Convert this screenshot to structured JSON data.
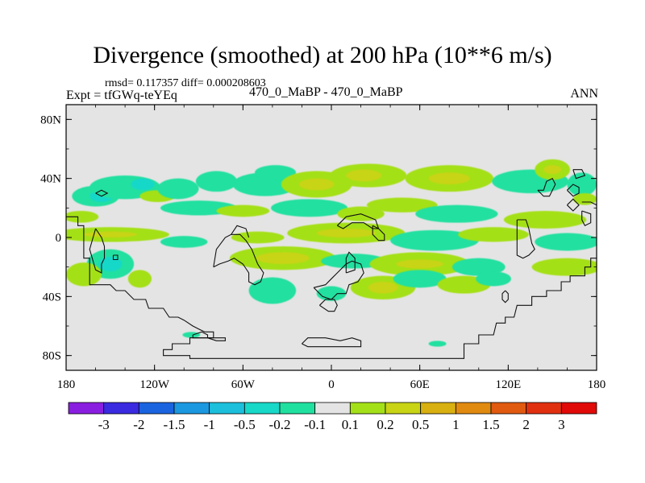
{
  "chart_data": {
    "type": "contour-map",
    "title": "Divergence (smoothed) at 200 hPa (10**6 m/s)",
    "stats_line": "rmsd= 0.117357 diff= 0.000208603",
    "experiment_label": "Expt = tfGWq-teYEq",
    "center_label": "470_0_MaBP - 470_0_MaBP",
    "season_label": "ANN",
    "x_ticks": [
      {
        "lon": -180,
        "label": "180"
      },
      {
        "lon": -120,
        "label": "120W"
      },
      {
        "lon": -60,
        "label": "60W"
      },
      {
        "lon": 0,
        "label": "0"
      },
      {
        "lon": 60,
        "label": "60E"
      },
      {
        "lon": 120,
        "label": "120E"
      },
      {
        "lon": 180,
        "label": "180"
      }
    ],
    "y_ticks": [
      {
        "lat": 80,
        "label": "80N"
      },
      {
        "lat": 40,
        "label": "40N"
      },
      {
        "lat": 0,
        "label": "0"
      },
      {
        "lat": -40,
        "label": "40S"
      },
      {
        "lat": -80,
        "label": "80S"
      }
    ],
    "xlim": [
      -180,
      180
    ],
    "ylim": [
      -90,
      90
    ],
    "colorbar": {
      "levels": [
        "-3",
        "-2",
        "-1.5",
        "-1",
        "-0.5",
        "-0.2",
        "-0.1",
        "0.1",
        "0.2",
        "0.5",
        "1",
        "1.5",
        "2",
        "3"
      ],
      "colors": [
        "#8a1ee0",
        "#3a2ae0",
        "#1a64e0",
        "#1c98e0",
        "#1cc0dc",
        "#18d8c8",
        "#20e0a0",
        "#e4e4e4",
        "#a4e018",
        "#c8d414",
        "#d8b010",
        "#e08a10",
        "#e05a10",
        "#e03010",
        "#e00a08"
      ]
    },
    "fields": [
      {
        "lon": -170,
        "lat": 14,
        "rx": 12,
        "ry": 4,
        "color": "#a4e018"
      },
      {
        "lon": -160,
        "lat": 28,
        "rx": 16,
        "ry": 7,
        "color": "#20e0a0"
      },
      {
        "lon": -156,
        "lat": 28,
        "rx": 8,
        "ry": 4,
        "color": "#18d8c8"
      },
      {
        "lon": -140,
        "lat": 34,
        "rx": 24,
        "ry": 8,
        "color": "#20e0a0"
      },
      {
        "lon": -128,
        "lat": 36,
        "rx": 8,
        "ry": 4,
        "color": "#18d8c8"
      },
      {
        "lon": -118,
        "lat": 28,
        "rx": 12,
        "ry": 4,
        "color": "#a4e018"
      },
      {
        "lon": -104,
        "lat": 33,
        "rx": 14,
        "ry": 7,
        "color": "#20e0a0"
      },
      {
        "lon": -78,
        "lat": 38,
        "rx": 14,
        "ry": 7,
        "color": "#20e0a0"
      },
      {
        "lon": -45,
        "lat": 36,
        "rx": 22,
        "ry": 8,
        "color": "#20e0a0"
      },
      {
        "lon": -38,
        "lat": 44,
        "rx": 14,
        "ry": 5,
        "color": "#20e0a0"
      },
      {
        "lon": -10,
        "lat": 36,
        "rx": 24,
        "ry": 9,
        "color": "#a4e018"
      },
      {
        "lon": -10,
        "lat": 36,
        "rx": 12,
        "ry": 4,
        "color": "#c8d414"
      },
      {
        "lon": 25,
        "lat": 42,
        "rx": 26,
        "ry": 8,
        "color": "#a4e018"
      },
      {
        "lon": 22,
        "lat": 42,
        "rx": 12,
        "ry": 4,
        "color": "#c8d414"
      },
      {
        "lon": 80,
        "lat": 40,
        "rx": 30,
        "ry": 9,
        "color": "#a4e018"
      },
      {
        "lon": 80,
        "lat": 40,
        "rx": 14,
        "ry": 4,
        "color": "#c8d414"
      },
      {
        "lon": 135,
        "lat": 38,
        "rx": 26,
        "ry": 8,
        "color": "#20e0a0"
      },
      {
        "lon": 150,
        "lat": 46,
        "rx": 12,
        "ry": 7,
        "color": "#a4e018"
      },
      {
        "lon": 150,
        "lat": 46,
        "rx": 6,
        "ry": 3,
        "color": "#c8d414"
      },
      {
        "lon": 170,
        "lat": 36,
        "rx": 10,
        "ry": 8,
        "color": "#20e0a0"
      },
      {
        "lon": 172,
        "lat": 26,
        "rx": 8,
        "ry": 4,
        "color": "#a4e018"
      },
      {
        "lon": -90,
        "lat": 20,
        "rx": 26,
        "ry": 5,
        "color": "#20e0a0"
      },
      {
        "lon": -60,
        "lat": 18,
        "rx": 18,
        "ry": 4,
        "color": "#a4e018"
      },
      {
        "lon": -15,
        "lat": 20,
        "rx": 26,
        "ry": 6,
        "color": "#20e0a0"
      },
      {
        "lon": 20,
        "lat": 16,
        "rx": 16,
        "ry": 5,
        "color": "#a4e018"
      },
      {
        "lon": 48,
        "lat": 22,
        "rx": 24,
        "ry": 5,
        "color": "#a4e018"
      },
      {
        "lon": 85,
        "lat": 16,
        "rx": 28,
        "ry": 6,
        "color": "#20e0a0"
      },
      {
        "lon": 145,
        "lat": 12,
        "rx": 28,
        "ry": 6,
        "color": "#a4e018"
      },
      {
        "lon": -150,
        "lat": 2,
        "rx": 40,
        "ry": 5,
        "color": "#a4e018"
      },
      {
        "lon": -150,
        "lat": 2,
        "rx": 18,
        "ry": 2,
        "color": "#c8d414"
      },
      {
        "lon": -100,
        "lat": -3,
        "rx": 16,
        "ry": 4,
        "color": "#20e0a0"
      },
      {
        "lon": -50,
        "lat": 0,
        "rx": 18,
        "ry": 4,
        "color": "#a4e018"
      },
      {
        "lon": 10,
        "lat": 3,
        "rx": 40,
        "ry": 7,
        "color": "#a4e018"
      },
      {
        "lon": 10,
        "lat": 3,
        "rx": 20,
        "ry": 3,
        "color": "#c8d414"
      },
      {
        "lon": 70,
        "lat": -2,
        "rx": 30,
        "ry": 7,
        "color": "#20e0a0"
      },
      {
        "lon": 110,
        "lat": 2,
        "rx": 24,
        "ry": 5,
        "color": "#a4e018"
      },
      {
        "lon": 160,
        "lat": -3,
        "rx": 22,
        "ry": 6,
        "color": "#20e0a0"
      },
      {
        "lon": -150,
        "lat": -18,
        "rx": 16,
        "ry": 10,
        "color": "#20e0a0"
      },
      {
        "lon": -150,
        "lat": -18,
        "rx": 8,
        "ry": 5,
        "color": "#18d8c8"
      },
      {
        "lon": -168,
        "lat": -25,
        "rx": 12,
        "ry": 8,
        "color": "#a4e018"
      },
      {
        "lon": -130,
        "lat": -28,
        "rx": 8,
        "ry": 6,
        "color": "#a4e018"
      },
      {
        "lon": -33,
        "lat": -14,
        "rx": 36,
        "ry": 8,
        "color": "#a4e018"
      },
      {
        "lon": -33,
        "lat": -14,
        "rx": 18,
        "ry": 4,
        "color": "#c8d414"
      },
      {
        "lon": 15,
        "lat": -16,
        "rx": 22,
        "ry": 5,
        "color": "#20e0a0"
      },
      {
        "lon": 60,
        "lat": -18,
        "rx": 34,
        "ry": 8,
        "color": "#a4e018"
      },
      {
        "lon": 60,
        "lat": -18,
        "rx": 16,
        "ry": 3,
        "color": "#c8d414"
      },
      {
        "lon": 100,
        "lat": -20,
        "rx": 18,
        "ry": 6,
        "color": "#20e0a0"
      },
      {
        "lon": 160,
        "lat": -20,
        "rx": 24,
        "ry": 6,
        "color": "#a4e018"
      },
      {
        "lon": -40,
        "lat": -36,
        "rx": 16,
        "ry": 9,
        "color": "#20e0a0"
      },
      {
        "lon": 0,
        "lat": -38,
        "rx": 10,
        "ry": 5,
        "color": "#20e0a0"
      },
      {
        "lon": 35,
        "lat": -34,
        "rx": 22,
        "ry": 8,
        "color": "#a4e018"
      },
      {
        "lon": 35,
        "lat": -34,
        "rx": 10,
        "ry": 4,
        "color": "#c8d414"
      },
      {
        "lon": 60,
        "lat": -28,
        "rx": 18,
        "ry": 6,
        "color": "#20e0a0"
      },
      {
        "lon": 90,
        "lat": -32,
        "rx": 18,
        "ry": 6,
        "color": "#a4e018"
      },
      {
        "lon": 110,
        "lat": -28,
        "rx": 12,
        "ry": 5,
        "color": "#20e0a0"
      },
      {
        "lon": -95,
        "lat": -66,
        "rx": 6,
        "ry": 2,
        "color": "#20e0a0"
      },
      {
        "lon": 72,
        "lat": -72,
        "rx": 6,
        "ry": 2,
        "color": "#20e0a0"
      }
    ],
    "coastlines": [
      [
        [
          -180,
          14
        ],
        [
          -172,
          14
        ],
        [
          -172,
          8
        ],
        [
          -168,
          8
        ],
        [
          -168,
          -14
        ],
        [
          -164,
          -14
        ],
        [
          -164,
          -32
        ],
        [
          -150,
          -32
        ],
        [
          -146,
          -36
        ],
        [
          -140,
          -36
        ],
        [
          -134,
          -42
        ],
        [
          -126,
          -42
        ],
        [
          -124,
          -48
        ],
        [
          -114,
          -48
        ],
        [
          -110,
          -54
        ],
        [
          -104,
          -54
        ],
        [
          -100,
          -56
        ],
        [
          -94,
          -60
        ],
        [
          -90,
          -62
        ],
        [
          -86,
          -64
        ],
        [
          -80,
          -64
        ],
        [
          -80,
          -68
        ],
        [
          -96,
          -68
        ],
        [
          -96,
          -72
        ],
        [
          -108,
          -72
        ],
        [
          -108,
          -76
        ],
        [
          -114,
          -76
        ],
        [
          -114,
          -80
        ],
        [
          -96,
          -80
        ],
        [
          -96,
          -82
        ],
        [
          -50,
          -82
        ],
        [
          -30,
          -82
        ],
        [
          0,
          -82
        ],
        [
          40,
          -82
        ],
        [
          60,
          -82
        ],
        [
          90,
          -82
        ],
        [
          90,
          -72
        ],
        [
          100,
          -72
        ],
        [
          100,
          -66
        ],
        [
          110,
          -66
        ],
        [
          112,
          -58
        ],
        [
          118,
          -58
        ],
        [
          118,
          -54
        ],
        [
          124,
          -54
        ],
        [
          126,
          -46
        ],
        [
          136,
          -46
        ],
        [
          136,
          -40
        ],
        [
          146,
          -40
        ],
        [
          146,
          -36
        ],
        [
          156,
          -36
        ],
        [
          156,
          -30
        ],
        [
          162,
          -30
        ],
        [
          162,
          -26
        ],
        [
          172,
          -26
        ],
        [
          172,
          -20
        ],
        [
          176,
          -20
        ],
        [
          176,
          -14
        ],
        [
          180,
          -14
        ]
      ],
      [
        [
          -160,
          6
        ],
        [
          -164,
          -8
        ],
        [
          -160,
          -22
        ],
        [
          -156,
          -24
        ],
        [
          -156,
          -18
        ],
        [
          -154,
          -14
        ],
        [
          -154,
          -6
        ],
        [
          -156,
          0
        ],
        [
          -160,
          6
        ]
      ],
      [
        [
          -148,
          -12
        ],
        [
          -145,
          -12
        ],
        [
          -145,
          -15
        ],
        [
          -148,
          -15
        ],
        [
          -148,
          -12
        ]
      ],
      [
        [
          -80,
          -20
        ],
        [
          -78,
          -8
        ],
        [
          -72,
          0
        ],
        [
          -68,
          2
        ],
        [
          -62,
          2
        ],
        [
          -58,
          -2
        ],
        [
          -54,
          -8
        ],
        [
          -50,
          -18
        ],
        [
          -46,
          -24
        ],
        [
          -48,
          -30
        ],
        [
          -52,
          -32
        ],
        [
          -56,
          -30
        ],
        [
          -56,
          -24
        ],
        [
          -60,
          -18
        ],
        [
          -66,
          -14
        ],
        [
          -70,
          -16
        ],
        [
          -76,
          -18
        ],
        [
          -80,
          -20
        ]
      ],
      [
        [
          -68,
          2
        ],
        [
          -64,
          8
        ],
        [
          -58,
          6
        ],
        [
          -56,
          0
        ]
      ],
      [
        [
          -12,
          -34
        ],
        [
          -6,
          -40
        ],
        [
          0,
          -42
        ],
        [
          4,
          -38
        ],
        [
          10,
          -38
        ],
        [
          12,
          -32
        ],
        [
          18,
          -30
        ],
        [
          22,
          -24
        ],
        [
          20,
          -18
        ],
        [
          14,
          -16
        ],
        [
          10,
          -18
        ],
        [
          4,
          -24
        ],
        [
          0,
          -28
        ],
        [
          -4,
          -32
        ],
        [
          -12,
          -34
        ]
      ],
      [
        [
          -8,
          -46
        ],
        [
          -2,
          -50
        ],
        [
          2,
          -50
        ],
        [
          4,
          -46
        ],
        [
          2,
          -42
        ],
        [
          -4,
          -42
        ],
        [
          -8,
          -46
        ]
      ],
      [
        [
          10,
          -24
        ],
        [
          16,
          -22
        ],
        [
          16,
          -14
        ],
        [
          12,
          -10
        ],
        [
          10,
          -14
        ],
        [
          10,
          -24
        ]
      ],
      [
        [
          4,
          8
        ],
        [
          10,
          14
        ],
        [
          20,
          16
        ],
        [
          30,
          12
        ],
        [
          32,
          6
        ],
        [
          28,
          6
        ],
        [
          22,
          10
        ],
        [
          14,
          10
        ],
        [
          8,
          6
        ],
        [
          4,
          8
        ]
      ],
      [
        [
          28,
          8
        ],
        [
          32,
          6
        ],
        [
          36,
          2
        ],
        [
          36,
          -2
        ],
        [
          32,
          -2
        ],
        [
          28,
          2
        ],
        [
          28,
          8
        ]
      ],
      [
        [
          -94,
          -66
        ],
        [
          -88,
          -64
        ],
        [
          -84,
          -66
        ],
        [
          -84,
          -68
        ],
        [
          -94,
          -68
        ],
        [
          -94,
          -66
        ]
      ],
      [
        [
          -84,
          -68
        ],
        [
          -78,
          -70
        ],
        [
          -72,
          -70
        ],
        [
          -72,
          -68
        ],
        [
          -84,
          -68
        ]
      ],
      [
        [
          -20,
          -72
        ],
        [
          -16,
          -68
        ],
        [
          -4,
          -68
        ],
        [
          6,
          -70
        ],
        [
          14,
          -68
        ],
        [
          20,
          -70
        ],
        [
          20,
          -74
        ],
        [
          -16,
          -74
        ],
        [
          -20,
          -72
        ]
      ],
      [
        [
          -160,
          30
        ],
        [
          -156,
          28
        ],
        [
          -152,
          30
        ],
        [
          -156,
          32
        ],
        [
          -160,
          30
        ]
      ],
      [
        [
          126,
          12
        ],
        [
          132,
          12
        ],
        [
          134,
          6
        ],
        [
          136,
          -4
        ],
        [
          138,
          -8
        ],
        [
          134,
          -12
        ],
        [
          130,
          -14
        ],
        [
          126,
          -12
        ],
        [
          126,
          -4
        ],
        [
          126,
          12
        ]
      ],
      [
        [
          118,
          -36
        ],
        [
          120,
          -38
        ],
        [
          120,
          -42
        ],
        [
          118,
          -44
        ],
        [
          116,
          -42
        ],
        [
          116,
          -38
        ],
        [
          118,
          -36
        ]
      ],
      [
        [
          140,
          32
        ],
        [
          144,
          32
        ],
        [
          146,
          38
        ],
        [
          150,
          40
        ],
        [
          152,
          36
        ],
        [
          150,
          32
        ],
        [
          148,
          28
        ],
        [
          144,
          28
        ],
        [
          140,
          32
        ]
      ],
      [
        [
          160,
          22
        ],
        [
          164,
          26
        ],
        [
          168,
          22
        ],
        [
          164,
          18
        ],
        [
          160,
          22
        ]
      ],
      [
        [
          170,
          18
        ],
        [
          176,
          16
        ],
        [
          176,
          10
        ],
        [
          172,
          8
        ],
        [
          170,
          12
        ],
        [
          170,
          18
        ]
      ],
      [
        [
          160,
          32
        ],
        [
          164,
          36
        ],
        [
          168,
          34
        ],
        [
          168,
          30
        ],
        [
          164,
          28
        ],
        [
          160,
          32
        ]
      ],
      [
        [
          170,
          24
        ],
        [
          176,
          24
        ],
        [
          180,
          22
        ]
      ],
      [
        [
          164,
          46
        ],
        [
          170,
          46
        ],
        [
          172,
          42
        ],
        [
          166,
          40
        ],
        [
          164,
          46
        ]
      ]
    ]
  }
}
